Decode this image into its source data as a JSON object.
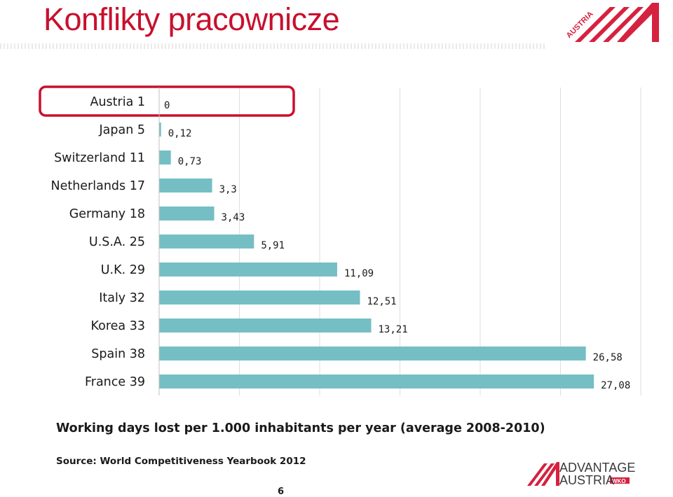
{
  "slide": {
    "title": "Konflikty pracownicze",
    "page_number": "6"
  },
  "logos": {
    "corner_text": "AUSTRIA",
    "advantage_line1": "ADVANTAGE",
    "advantage_line2": "AUSTRIA",
    "wko": "WKO",
    "brand_color": "#d6213f"
  },
  "chart_data": {
    "type": "bar",
    "orientation": "horizontal",
    "categories": [
      "Austria 1",
      "Japan 5",
      "Switzerland 11",
      "Netherlands 17",
      "Germany 18",
      "U.S.A. 25",
      "U.K. 29",
      "Italy 32",
      "Korea 33",
      "Spain 38",
      "France 39"
    ],
    "values": [
      0,
      0.12,
      0.73,
      3.3,
      3.43,
      5.91,
      11.09,
      12.51,
      13.21,
      26.58,
      27.08
    ],
    "value_labels": [
      "0",
      "0,12",
      "0,73",
      "3,3",
      "3,43",
      "5,91",
      "11,09",
      "12,51",
      "13,21",
      "26,58",
      "27,08"
    ],
    "xlim": [
      0,
      30
    ],
    "grid": true,
    "bar_color": "#75bec4",
    "highlight_category": "Austria 1",
    "highlight_color": "#c8102e",
    "xlabel": "Working days lost per 1.000 inhabitants per year (average 2008-2010)",
    "source": "Source: World Competitiveness Yearbook 2012"
  }
}
